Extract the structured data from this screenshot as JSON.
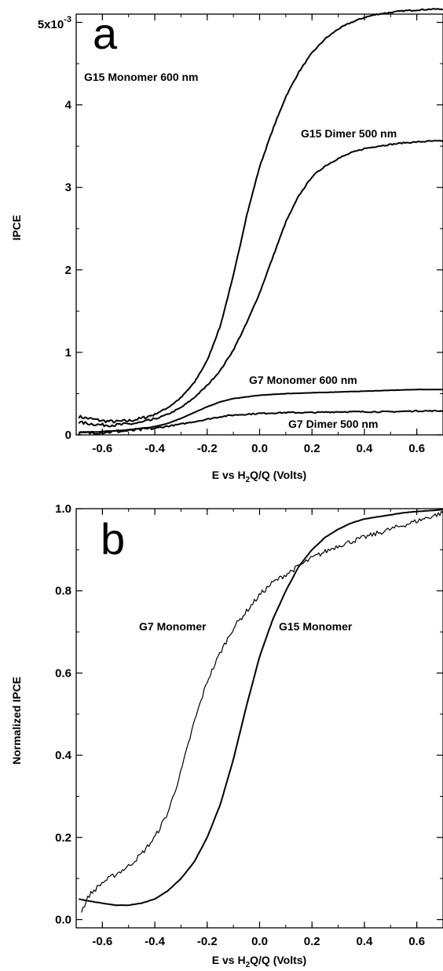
{
  "chart_data": [
    {
      "panel_label": "a",
      "type": "line",
      "xlabel": {
        "pre": "E   vs H",
        "sub": "2",
        "post": "Q/Q (Volts)"
      },
      "ylabel": "IPCE",
      "xlim": [
        -0.7,
        0.7
      ],
      "ylim": [
        0,
        0.0051
      ],
      "xticks": [
        -0.6,
        -0.4,
        -0.2,
        0.0,
        0.2,
        0.4,
        0.6
      ],
      "xtick_labels": [
        "-0.6",
        "-0.4",
        "-0.2",
        "0.0",
        "0.2",
        "0.4",
        "0.6"
      ],
      "yticks": [
        0,
        0.001,
        0.002,
        0.003,
        0.004,
        0.005
      ],
      "ytick_labels": [
        "0",
        "1",
        "2",
        "3",
        "4",
        ""
      ],
      "y_top_label": {
        "base": "5x10",
        "exp": "-3"
      },
      "series": [
        {
          "name": "G15 Monomer 600 nm",
          "noisy": true,
          "x": [
            -0.69,
            -0.6,
            -0.55,
            -0.5,
            -0.45,
            -0.4,
            -0.35,
            -0.3,
            -0.25,
            -0.2,
            -0.15,
            -0.1,
            -0.05,
            0.0,
            0.05,
            0.1,
            0.15,
            0.2,
            0.25,
            0.3,
            0.35,
            0.4,
            0.45,
            0.5,
            0.55,
            0.6,
            0.65,
            0.7
          ],
          "y": [
            0.00022,
            0.00017,
            0.00016,
            0.00017,
            0.0002,
            0.00025,
            0.00033,
            0.00045,
            0.00063,
            0.0009,
            0.00132,
            0.00193,
            0.00265,
            0.00325,
            0.0037,
            0.0041,
            0.0044,
            0.00463,
            0.0048,
            0.00492,
            0.005,
            0.00506,
            0.0051,
            0.00512,
            0.00514,
            0.00515,
            0.00516,
            0.00516
          ]
        },
        {
          "name": "G15 Dimer 500 nm",
          "noisy": true,
          "x": [
            -0.69,
            -0.6,
            -0.55,
            -0.5,
            -0.45,
            -0.4,
            -0.35,
            -0.3,
            -0.25,
            -0.2,
            -0.15,
            -0.1,
            -0.05,
            0.0,
            0.05,
            0.1,
            0.15,
            0.2,
            0.25,
            0.3,
            0.35,
            0.4,
            0.45,
            0.5,
            0.55,
            0.6,
            0.65,
            0.7
          ],
          "y": [
            0.00015,
            0.00012,
            0.00012,
            0.00013,
            0.00015,
            0.00019,
            0.00025,
            0.00033,
            0.00045,
            0.0006,
            0.00078,
            0.00103,
            0.00135,
            0.00172,
            0.00215,
            0.00258,
            0.0029,
            0.00313,
            0.00326,
            0.00335,
            0.00342,
            0.00347,
            0.0035,
            0.00352,
            0.00354,
            0.00355,
            0.00356,
            0.00356
          ]
        },
        {
          "name": "G7 Monomer 600 nm",
          "noisy": false,
          "x": [
            -0.69,
            -0.6,
            -0.5,
            -0.4,
            -0.35,
            -0.3,
            -0.25,
            -0.2,
            -0.15,
            -0.1,
            -0.05,
            0.0,
            0.1,
            0.2,
            0.3,
            0.4,
            0.5,
            0.6,
            0.7
          ],
          "y": [
            3e-05,
            4e-05,
            6e-05,
            0.0001,
            0.00014,
            0.0002,
            0.00027,
            0.00034,
            0.0004,
            0.00044,
            0.00046,
            0.00048,
            0.0005,
            0.00051,
            0.00052,
            0.00053,
            0.00054,
            0.00055,
            0.00055
          ]
        },
        {
          "name": "G7 Dimer 500 nm",
          "noisy": true,
          "x": [
            -0.69,
            -0.6,
            -0.5,
            -0.4,
            -0.3,
            -0.2,
            -0.15,
            -0.1,
            -0.05,
            0.0,
            0.1,
            0.2,
            0.3,
            0.4,
            0.5,
            0.6,
            0.7
          ],
          "y": [
            2e-05,
            3e-05,
            5e-05,
            8e-05,
            0.00013,
            0.00019,
            0.00022,
            0.00024,
            0.00025,
            0.00026,
            0.00027,
            0.00027,
            0.00028,
            0.00028,
            0.00028,
            0.00029,
            0.00029
          ]
        }
      ]
    },
    {
      "panel_label": "b",
      "type": "line",
      "xlabel": {
        "pre": "E   vs H",
        "sub": "2",
        "post": "Q/Q (Volts)"
      },
      "ylabel": "Normalized IPCE",
      "xlim": [
        -0.7,
        0.7
      ],
      "ylim": [
        -0.02,
        1.0
      ],
      "xticks": [
        -0.6,
        -0.4,
        -0.2,
        0.0,
        0.2,
        0.4,
        0.6
      ],
      "xtick_labels": [
        "-0.6",
        "-0.4",
        "-0.2",
        "0.0",
        "0.2",
        "0.4",
        "0.6"
      ],
      "yticks": [
        0.0,
        0.2,
        0.4,
        0.6,
        0.8,
        1.0
      ],
      "ytick_labels": [
        "0.0",
        "0.2",
        "0.4",
        "0.6",
        "0.8",
        "1.0"
      ],
      "series": [
        {
          "name": "G7 Monomer",
          "noisy": true,
          "x": [
            -0.68,
            -0.65,
            -0.6,
            -0.55,
            -0.5,
            -0.45,
            -0.4,
            -0.35,
            -0.3,
            -0.25,
            -0.2,
            -0.15,
            -0.1,
            -0.05,
            0.0,
            0.05,
            0.1,
            0.15,
            0.2,
            0.3,
            0.4,
            0.5,
            0.6,
            0.7
          ],
          "y": [
            0.02,
            0.06,
            0.09,
            0.11,
            0.13,
            0.16,
            0.2,
            0.26,
            0.36,
            0.48,
            0.58,
            0.65,
            0.71,
            0.75,
            0.79,
            0.82,
            0.84,
            0.86,
            0.88,
            0.91,
            0.93,
            0.95,
            0.97,
            0.99
          ]
        },
        {
          "name": "G15 Monomer",
          "noisy": false,
          "x": [
            -0.69,
            -0.65,
            -0.6,
            -0.55,
            -0.5,
            -0.45,
            -0.4,
            -0.35,
            -0.3,
            -0.25,
            -0.2,
            -0.15,
            -0.1,
            -0.05,
            0.0,
            0.05,
            0.1,
            0.15,
            0.2,
            0.25,
            0.3,
            0.35,
            0.4,
            0.45,
            0.5,
            0.55,
            0.6,
            0.65,
            0.7
          ],
          "y": [
            0.05,
            0.045,
            0.04,
            0.035,
            0.035,
            0.04,
            0.05,
            0.07,
            0.1,
            0.14,
            0.2,
            0.28,
            0.39,
            0.52,
            0.64,
            0.73,
            0.8,
            0.86,
            0.9,
            0.93,
            0.95,
            0.965,
            0.975,
            0.98,
            0.985,
            0.99,
            0.993,
            0.995,
            0.998
          ]
        }
      ]
    }
  ],
  "annotations": [
    [
      {
        "text": "G15 Monomer 600 nm"
      },
      {
        "text": "G15 Dimer 500 nm"
      },
      {
        "text": "G7 Monomer 600 nm"
      },
      {
        "text": "G7 Dimer 500 nm"
      }
    ],
    [
      {
        "text": "G7 Monomer"
      },
      {
        "text": "G15 Monomer"
      }
    ]
  ]
}
